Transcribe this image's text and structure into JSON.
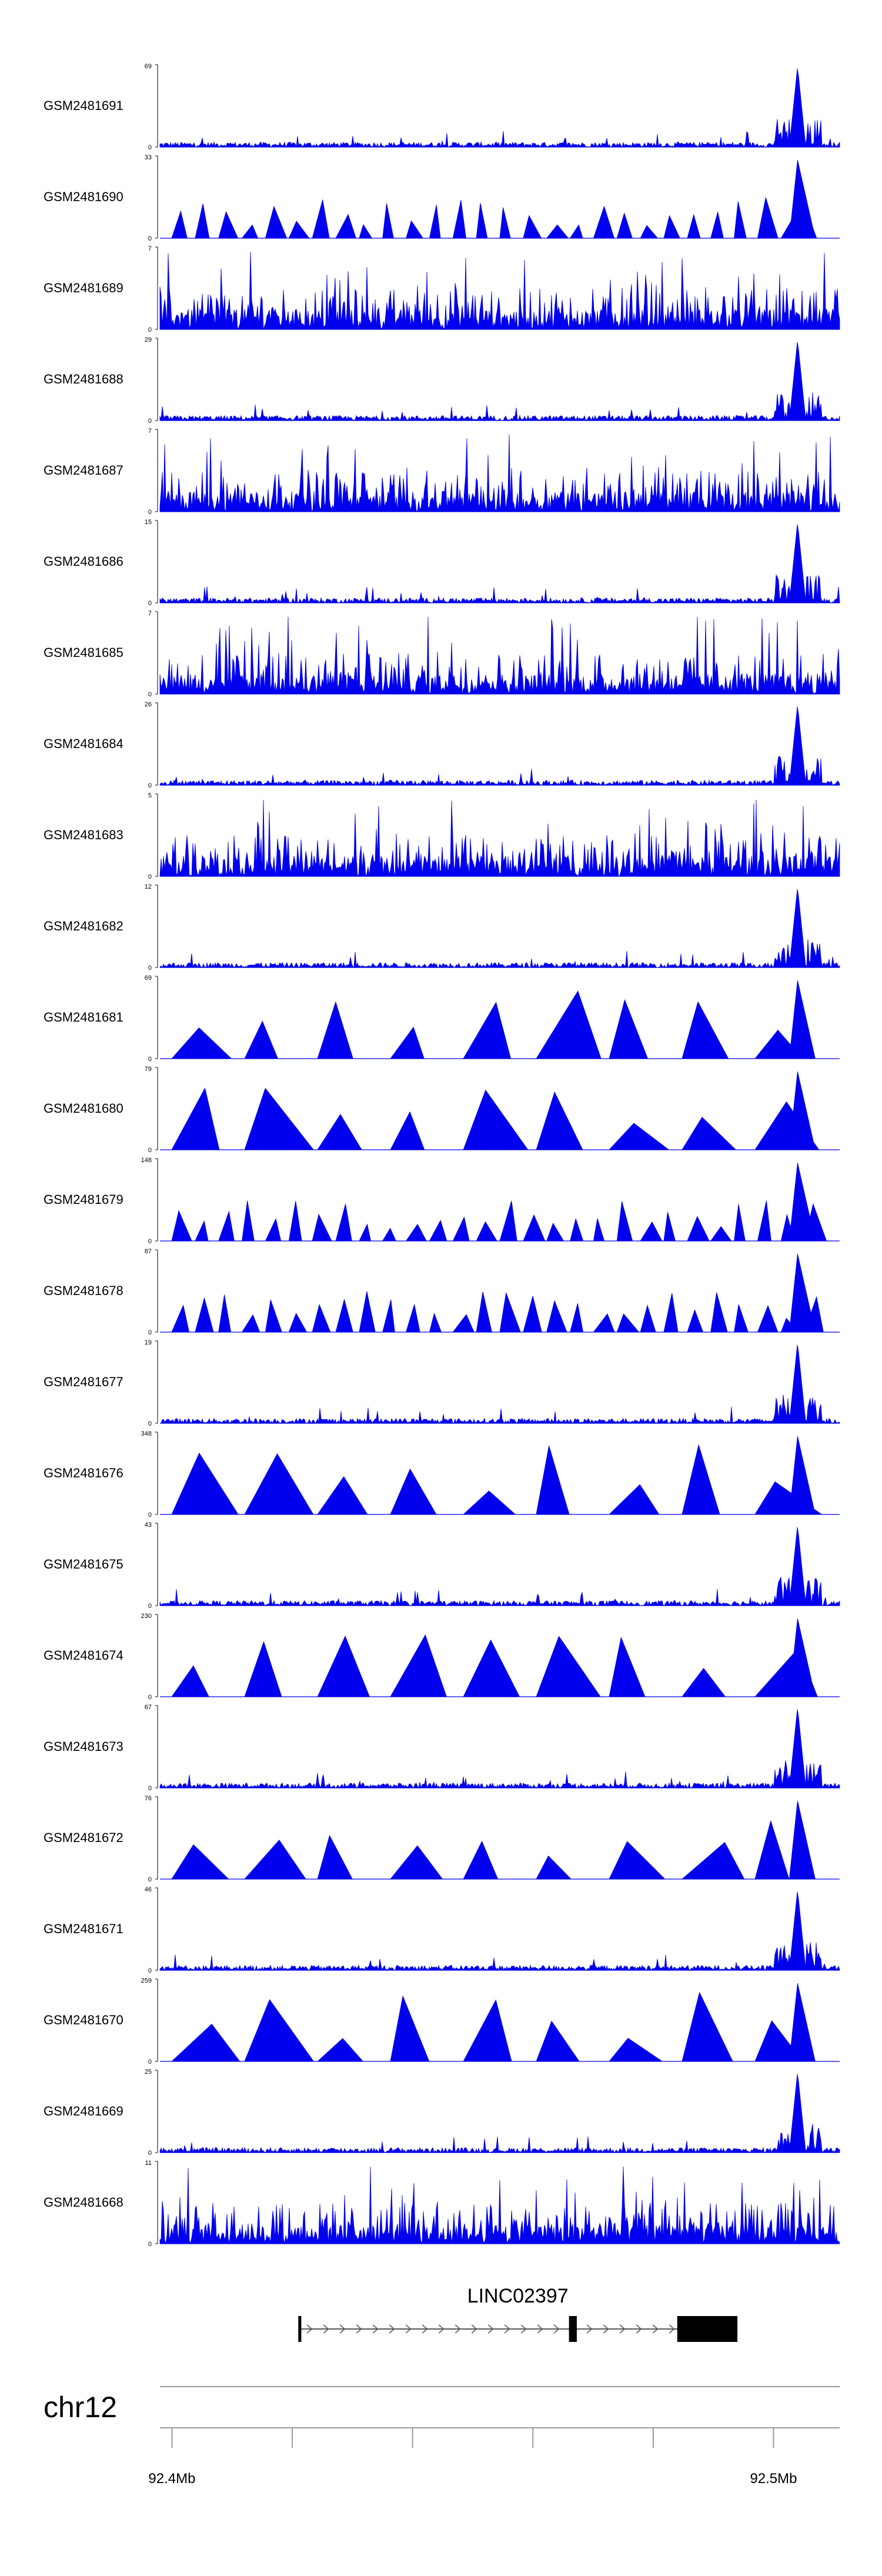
{
  "chart_data": {
    "type": "area",
    "tracks": [
      {
        "name": "GSM2481691",
        "max": "69"
      },
      {
        "name": "GSM2481690",
        "max": "33"
      },
      {
        "name": "GSM2481689",
        "max": "7"
      },
      {
        "name": "GSM2481688",
        "max": "29"
      },
      {
        "name": "GSM2481687",
        "max": "7"
      },
      {
        "name": "GSM2481686",
        "max": "15"
      },
      {
        "name": "GSM2481685",
        "max": "7"
      },
      {
        "name": "GSM2481684",
        "max": "26"
      },
      {
        "name": "GSM2481683",
        "max": "5"
      },
      {
        "name": "GSM2481682",
        "max": "12"
      },
      {
        "name": "GSM2481681",
        "max": "69"
      },
      {
        "name": "GSM2481680",
        "max": "79"
      },
      {
        "name": "GSM2481679",
        "max": "148"
      },
      {
        "name": "GSM2481678",
        "max": "87"
      },
      {
        "name": "GSM2481677",
        "max": "19"
      },
      {
        "name": "GSM2481676",
        "max": "348"
      },
      {
        "name": "GSM2481675",
        "max": "43"
      },
      {
        "name": "GSM2481674",
        "max": "230"
      },
      {
        "name": "GSM2481673",
        "max": "67"
      },
      {
        "name": "GSM2481672",
        "max": "76"
      },
      {
        "name": "GSM2481671",
        "max": "46"
      },
      {
        "name": "GSM2481670",
        "max": "259"
      },
      {
        "name": "GSM2481669",
        "max": "25"
      },
      {
        "name": "GSM2481668",
        "max": "11"
      }
    ],
    "ymin_label": "0",
    "series_color": "#0000ee",
    "region_mb": [
      92.398,
      92.511
    ],
    "peak_mb": 92.504,
    "gene": {
      "name": "LINC02397",
      "start_mb": 92.421,
      "end_mb": 92.494,
      "exons_mb": [
        [
          92.421,
          92.4215
        ],
        [
          92.466,
          92.4673
        ],
        [
          92.484,
          92.494
        ]
      ],
      "strand": "+"
    },
    "chromosome": "chr12",
    "axis": {
      "ticks_mb": [
        92.4,
        92.42,
        92.44,
        92.46,
        92.48,
        92.5
      ],
      "tick_labels": [
        {
          "mb": 92.4,
          "label": "92.4Mb"
        },
        {
          "mb": 92.5,
          "label": "92.5Mb"
        }
      ]
    }
  }
}
